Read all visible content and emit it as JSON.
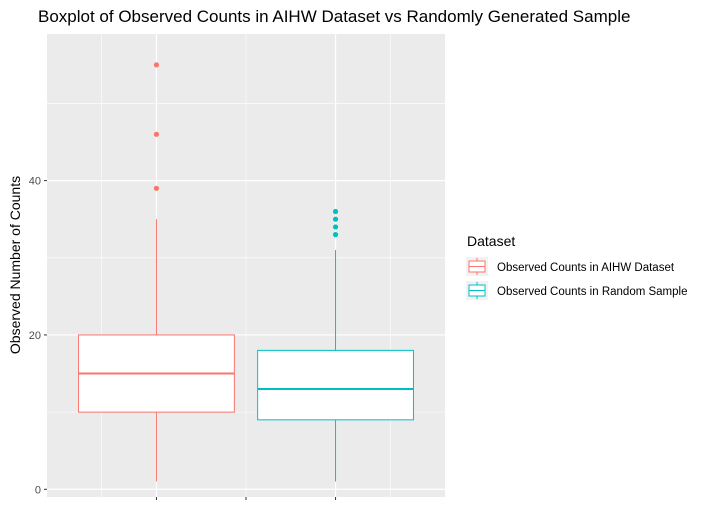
{
  "chart_data": {
    "type": "boxplot",
    "title": "Boxplot of Observed Counts in AIHW Dataset vs Randomly Generated Sample",
    "ylabel": "Observed Number of Counts",
    "xlabel": "",
    "ylim": [
      -1,
      59
    ],
    "yticks": [
      0,
      20,
      40
    ],
    "grid": true,
    "legend": {
      "title": "Dataset",
      "position": "right"
    },
    "series": [
      {
        "name": "Observed Counts in AIHW Dataset",
        "color": "#F8766D",
        "whisker_low": 1,
        "q1": 10,
        "median": 15,
        "q3": 20,
        "whisker_high": 35,
        "outliers": [
          39,
          46,
          55
        ]
      },
      {
        "name": "Observed Counts in Random Sample",
        "color": "#00BFC4",
        "whisker_low": 1,
        "q1": 9,
        "median": 13,
        "q3": 18,
        "whisker_high": 31,
        "outliers": [
          33,
          34,
          35,
          36
        ]
      }
    ]
  }
}
